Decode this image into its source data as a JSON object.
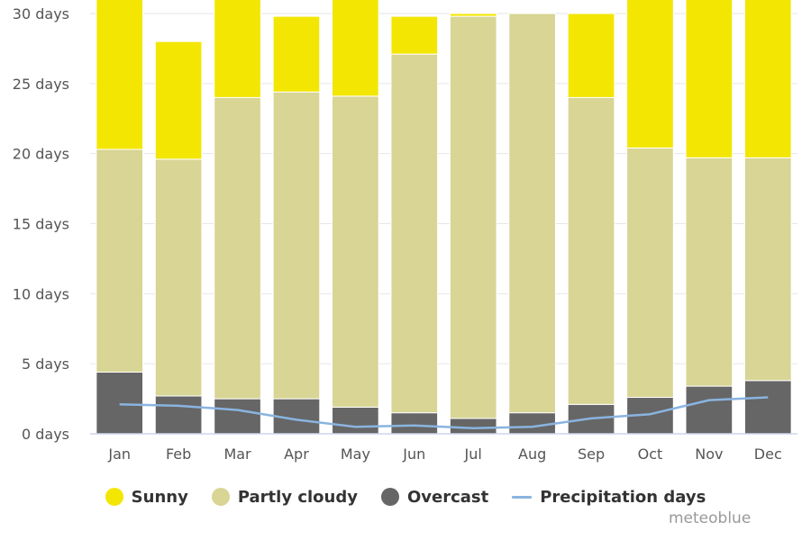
{
  "chart_data": {
    "type": "bar",
    "stacked": true,
    "categories": [
      "Jan",
      "Feb",
      "Mar",
      "Apr",
      "May",
      "Jun",
      "Jul",
      "Aug",
      "Sep",
      "Oct",
      "Nov",
      "Dec"
    ],
    "series": [
      {
        "name": "Overcast",
        "kind": "bar",
        "color": "#666666",
        "values": [
          4.4,
          2.7,
          2.5,
          2.5,
          1.9,
          1.5,
          1.1,
          1.5,
          2.1,
          2.6,
          3.4,
          3.8
        ]
      },
      {
        "name": "Partly cloudy",
        "kind": "bar",
        "color": "#d8d595",
        "values": [
          15.9,
          16.9,
          21.5,
          21.9,
          22.2,
          25.6,
          28.7,
          28.5,
          21.9,
          17.8,
          16.3,
          15.9
        ]
      },
      {
        "name": "Sunny",
        "kind": "bar",
        "color": "#f3e603",
        "values": [
          10.7,
          8.4,
          7.0,
          5.4,
          6.9,
          2.7,
          0.2,
          0.0,
          6.0,
          10.6,
          11.3,
          11.3
        ]
      },
      {
        "name": "Precipitation days",
        "kind": "line",
        "color": "#8ab4e0",
        "values": [
          2.1,
          2.0,
          1.7,
          1.0,
          0.5,
          0.6,
          0.4,
          0.5,
          1.1,
          1.4,
          2.4,
          2.6
        ]
      }
    ],
    "yticks": [
      "0 days",
      "5 days",
      "10 days",
      "15 days",
      "20 days",
      "25 days",
      "30 days"
    ],
    "ylim": [
      0,
      30
    ],
    "grid": true,
    "legend_position": "bottom"
  },
  "legend": {
    "items": [
      {
        "label": "Sunny",
        "color": "#f3e603",
        "shape": "dot"
      },
      {
        "label": "Partly cloudy",
        "color": "#d8d595",
        "shape": "dot"
      },
      {
        "label": "Overcast",
        "color": "#666666",
        "shape": "dot"
      },
      {
        "label": "Precipitation days",
        "color": "#8ab4e0",
        "shape": "line"
      }
    ]
  },
  "credit": "meteoblue"
}
